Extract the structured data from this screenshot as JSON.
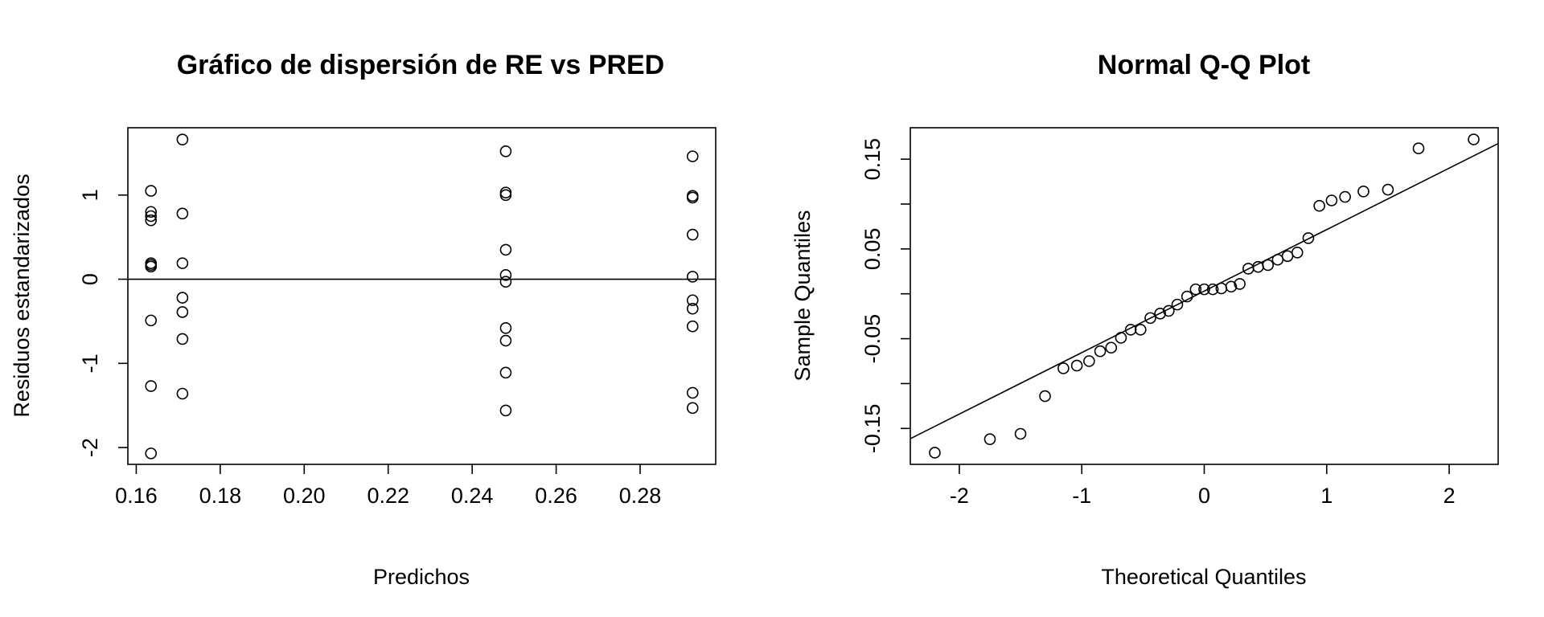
{
  "chart_data": [
    {
      "type": "scatter",
      "title": "Gráfico de dispersión de RE vs PRED",
      "xlabel": "Predichos",
      "ylabel": "Residuos estandarizados",
      "xlim": [
        0.158,
        0.298
      ],
      "ylim": [
        -2.2,
        1.8
      ],
      "xticks": [
        0.16,
        0.18,
        0.2,
        0.22,
        0.24,
        0.26,
        0.28
      ],
      "xtick_labels": [
        "0.16",
        "0.18",
        "0.20",
        "0.22",
        "0.24",
        "0.26",
        "0.28"
      ],
      "yticks": [
        -2,
        -1,
        0,
        1
      ],
      "ytick_labels": [
        "-2",
        "-1",
        "0",
        "1"
      ],
      "hline": 0,
      "grid": false,
      "points": [
        {
          "x": 0.1635,
          "y": 1.05
        },
        {
          "x": 0.1635,
          "y": 0.8
        },
        {
          "x": 0.1635,
          "y": 0.75
        },
        {
          "x": 0.1635,
          "y": 0.7
        },
        {
          "x": 0.1635,
          "y": 0.19
        },
        {
          "x": 0.1635,
          "y": 0.17
        },
        {
          "x": 0.1635,
          "y": 0.15
        },
        {
          "x": 0.1635,
          "y": -0.49
        },
        {
          "x": 0.1635,
          "y": -1.27
        },
        {
          "x": 0.1635,
          "y": -2.07
        },
        {
          "x": 0.171,
          "y": 1.66
        },
        {
          "x": 0.171,
          "y": 0.78
        },
        {
          "x": 0.171,
          "y": 0.19
        },
        {
          "x": 0.171,
          "y": -0.22
        },
        {
          "x": 0.171,
          "y": -0.39
        },
        {
          "x": 0.171,
          "y": -0.71
        },
        {
          "x": 0.171,
          "y": -1.36
        },
        {
          "x": 0.248,
          "y": 1.52
        },
        {
          "x": 0.248,
          "y": 1.03
        },
        {
          "x": 0.248,
          "y": 1.0
        },
        {
          "x": 0.248,
          "y": 0.35
        },
        {
          "x": 0.248,
          "y": 0.05
        },
        {
          "x": 0.248,
          "y": -0.03
        },
        {
          "x": 0.248,
          "y": -0.58
        },
        {
          "x": 0.248,
          "y": -0.73
        },
        {
          "x": 0.248,
          "y": -1.11
        },
        {
          "x": 0.248,
          "y": -1.56
        },
        {
          "x": 0.2925,
          "y": 1.46
        },
        {
          "x": 0.2925,
          "y": 0.99
        },
        {
          "x": 0.2925,
          "y": 0.97
        },
        {
          "x": 0.2925,
          "y": 0.53
        },
        {
          "x": 0.2925,
          "y": 0.03
        },
        {
          "x": 0.2925,
          "y": -0.25
        },
        {
          "x": 0.2925,
          "y": -0.35
        },
        {
          "x": 0.2925,
          "y": -0.56
        },
        {
          "x": 0.2925,
          "y": -1.35
        },
        {
          "x": 0.2925,
          "y": -1.53
        }
      ]
    },
    {
      "type": "scatter",
      "title": "Normal Q-Q Plot",
      "xlabel": "Theoretical Quantiles",
      "ylabel": "Sample Quantiles",
      "xlim": [
        -2.4,
        2.4
      ],
      "ylim": [
        -0.19,
        0.185
      ],
      "xticks": [
        -2,
        -1,
        0,
        1,
        2
      ],
      "xtick_labels": [
        "-2",
        "-1",
        "0",
        "1",
        "2"
      ],
      "yticks": [
        -0.15,
        -0.05,
        0.05,
        0.15
      ],
      "ytick_labels": [
        "-0.15",
        "-0.05",
        "0.05",
        "0.15"
      ],
      "minor_yticks": [
        -0.1,
        0.0,
        0.1
      ],
      "grid": false,
      "reference_line": {
        "intercept": 0.003,
        "slope": 0.0685
      },
      "points": [
        {
          "x": -2.2,
          "y": -0.177
        },
        {
          "x": -1.75,
          "y": -0.162
        },
        {
          "x": -1.5,
          "y": -0.156
        },
        {
          "x": -1.3,
          "y": -0.114
        },
        {
          "x": -1.15,
          "y": -0.083
        },
        {
          "x": -1.04,
          "y": -0.08
        },
        {
          "x": -0.94,
          "y": -0.075
        },
        {
          "x": -0.85,
          "y": -0.064
        },
        {
          "x": -0.76,
          "y": -0.06
        },
        {
          "x": -0.68,
          "y": -0.049
        },
        {
          "x": -0.6,
          "y": -0.04
        },
        {
          "x": -0.52,
          "y": -0.04
        },
        {
          "x": -0.44,
          "y": -0.027
        },
        {
          "x": -0.36,
          "y": -0.022
        },
        {
          "x": -0.29,
          "y": -0.019
        },
        {
          "x": -0.22,
          "y": -0.012
        },
        {
          "x": -0.14,
          "y": -0.003
        },
        {
          "x": -0.07,
          "y": 0.005
        },
        {
          "x": 0.0,
          "y": 0.005
        },
        {
          "x": 0.07,
          "y": 0.005
        },
        {
          "x": 0.14,
          "y": 0.006
        },
        {
          "x": 0.22,
          "y": 0.008
        },
        {
          "x": 0.29,
          "y": 0.011
        },
        {
          "x": 0.36,
          "y": 0.028
        },
        {
          "x": 0.44,
          "y": 0.03
        },
        {
          "x": 0.52,
          "y": 0.032
        },
        {
          "x": 0.6,
          "y": 0.038
        },
        {
          "x": 0.68,
          "y": 0.042
        },
        {
          "x": 0.76,
          "y": 0.046
        },
        {
          "x": 0.85,
          "y": 0.062
        },
        {
          "x": 0.94,
          "y": 0.098
        },
        {
          "x": 1.04,
          "y": 0.104
        },
        {
          "x": 1.15,
          "y": 0.108
        },
        {
          "x": 1.3,
          "y": 0.114
        },
        {
          "x": 1.5,
          "y": 0.116
        },
        {
          "x": 1.75,
          "y": 0.162
        },
        {
          "x": 2.2,
          "y": 0.172
        }
      ]
    }
  ]
}
